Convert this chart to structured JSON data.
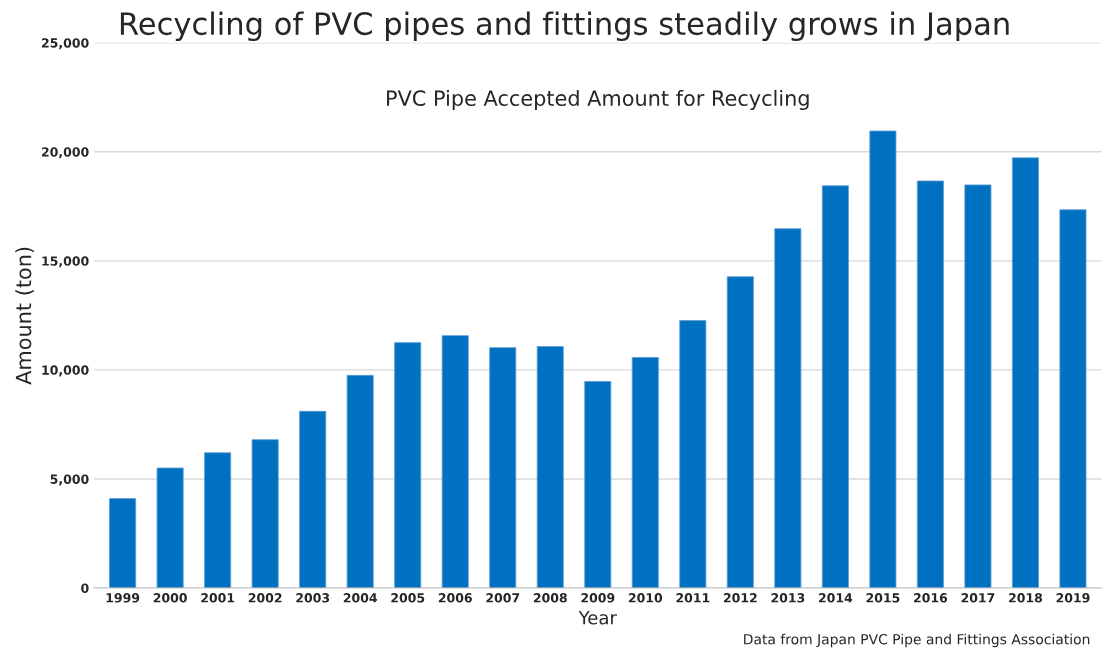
{
  "chart_data": {
    "type": "bar",
    "title": "Recycling of PVC pipes and fittings steadily grows in Japan",
    "subtitle": "PVC Pipe Accepted Amount for Recycling",
    "xlabel": "Year",
    "ylabel": "Amount (ton)",
    "categories": [
      "1999",
      "2000",
      "2001",
      "2002",
      "2003",
      "2004",
      "2005",
      "2006",
      "2007",
      "2008",
      "2009",
      "2010",
      "2011",
      "2012",
      "2013",
      "2014",
      "2015",
      "2016",
      "2017",
      "2018",
      "2019"
    ],
    "values": [
      4100,
      5500,
      6200,
      6800,
      8100,
      9750,
      11250,
      11570,
      11020,
      11070,
      9470,
      10570,
      12260,
      14270,
      16470,
      18440,
      20950,
      18660,
      18480,
      19720,
      17340
    ],
    "color": "#0070c0",
    "ylim": [
      0,
      25000
    ],
    "yticks": [
      {
        "value": 0,
        "label": "0"
      },
      {
        "value": 5000,
        "label": "5,000"
      },
      {
        "value": 10000,
        "label": "10,000"
      },
      {
        "value": 15000,
        "label": "15,000"
      },
      {
        "value": 20000,
        "label": "20,000"
      },
      {
        "value": 25000,
        "label": "25,000"
      }
    ],
    "grid": "y",
    "annotations": [
      "Data from Japan PVC Pipe and Fittings Association"
    ]
  }
}
